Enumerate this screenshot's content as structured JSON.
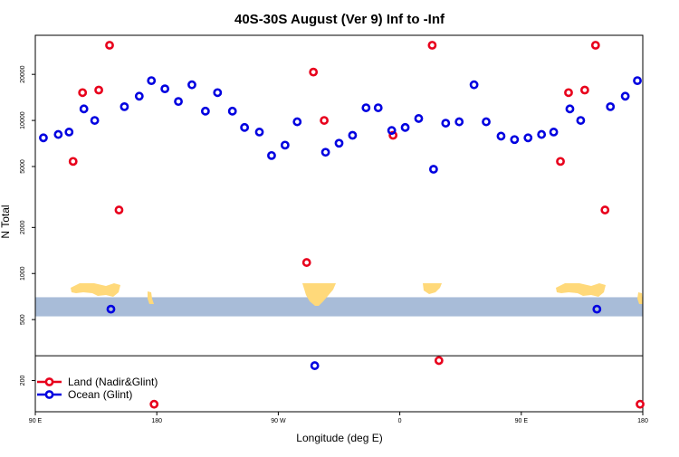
{
  "chart_data": {
    "type": "scatter",
    "title": "40S-30S August (Ver 9)   Inf to -Inf",
    "xlabel": "Longitude (deg E)",
    "ylabel": "N Total",
    "y_scale": "log",
    "ylim": [
      125,
      36000
    ],
    "x_ticks": [
      {
        "x": 0,
        "label": "90 E"
      },
      {
        "x": 90,
        "label": "180"
      },
      {
        "x": 180,
        "label": "90 W"
      },
      {
        "x": 270,
        "label": "0"
      },
      {
        "x": 360,
        "label": "90 E"
      },
      {
        "x": 450,
        "label": "180"
      }
    ],
    "y_ticks": [
      {
        "y": 200,
        "label": "200"
      },
      {
        "y": 500,
        "label": "500"
      },
      {
        "y": 1000,
        "label": "1000"
      },
      {
        "y": 2000,
        "label": "2000"
      },
      {
        "y": 5000,
        "label": "5000"
      },
      {
        "y": 10000,
        "label": "10000"
      },
      {
        "y": 20000,
        "label": "20000"
      }
    ],
    "reference_line_y": 290,
    "map_band": {
      "y_low": 525,
      "y_high": 700,
      "ocean_color": "#a8bcd8",
      "land_color": "#ffd97a"
    },
    "legend_position": "bottom-left",
    "series": [
      {
        "name": "Land (Nadir&Glint)",
        "color": "#e8001c",
        "points": [
          {
            "x": 28,
            "y": 5400
          },
          {
            "x": 35,
            "y": 15200
          },
          {
            "x": 47,
            "y": 15800
          },
          {
            "x": 55,
            "y": 31000
          },
          {
            "x": 62,
            "y": 2600
          },
          {
            "x": 201,
            "y": 1180
          },
          {
            "x": 206,
            "y": 20700
          },
          {
            "x": 214,
            "y": 10000
          },
          {
            "x": 265,
            "y": 8000
          },
          {
            "x": 294,
            "y": 31000
          },
          {
            "x": 299,
            "y": 270
          },
          {
            "x": 389,
            "y": 5400
          },
          {
            "x": 395,
            "y": 15200
          },
          {
            "x": 407,
            "y": 15800
          },
          {
            "x": 415,
            "y": 31000
          },
          {
            "x": 422,
            "y": 2600
          },
          {
            "x": 88,
            "y": 140
          },
          {
            "x": 448,
            "y": 140
          }
        ]
      },
      {
        "name": "Ocean (Glint)",
        "color": "#0000e0",
        "points": [
          {
            "x": 6,
            "y": 7700
          },
          {
            "x": 17,
            "y": 8100
          },
          {
            "x": 25,
            "y": 8400
          },
          {
            "x": 36,
            "y": 11900
          },
          {
            "x": 44,
            "y": 10000
          },
          {
            "x": 56,
            "y": 585
          },
          {
            "x": 66,
            "y": 12300
          },
          {
            "x": 77,
            "y": 14400
          },
          {
            "x": 86,
            "y": 18200
          },
          {
            "x": 96,
            "y": 16100
          },
          {
            "x": 106,
            "y": 13300
          },
          {
            "x": 116,
            "y": 17100
          },
          {
            "x": 126,
            "y": 11500
          },
          {
            "x": 135,
            "y": 15200
          },
          {
            "x": 146,
            "y": 11500
          },
          {
            "x": 155,
            "y": 9000
          },
          {
            "x": 166,
            "y": 8400
          },
          {
            "x": 175,
            "y": 5900
          },
          {
            "x": 185,
            "y": 6900
          },
          {
            "x": 194,
            "y": 9800
          },
          {
            "x": 207,
            "y": 250
          },
          {
            "x": 215,
            "y": 6200
          },
          {
            "x": 225,
            "y": 7100
          },
          {
            "x": 235,
            "y": 8000
          },
          {
            "x": 245,
            "y": 12100
          },
          {
            "x": 254,
            "y": 12100
          },
          {
            "x": 264,
            "y": 8600
          },
          {
            "x": 274,
            "y": 9000
          },
          {
            "x": 284,
            "y": 10300
          },
          {
            "x": 295,
            "y": 4800
          },
          {
            "x": 304,
            "y": 9600
          },
          {
            "x": 314,
            "y": 9800
          },
          {
            "x": 325,
            "y": 17100
          },
          {
            "x": 334,
            "y": 9800
          },
          {
            "x": 345,
            "y": 7900
          },
          {
            "x": 355,
            "y": 7500
          },
          {
            "x": 365,
            "y": 7700
          },
          {
            "x": 375,
            "y": 8100
          },
          {
            "x": 384,
            "y": 8400
          },
          {
            "x": 396,
            "y": 11900
          },
          {
            "x": 404,
            "y": 10000
          },
          {
            "x": 416,
            "y": 585
          },
          {
            "x": 426,
            "y": 12300
          },
          {
            "x": 437,
            "y": 14400
          },
          {
            "x": 446,
            "y": 18200
          }
        ]
      }
    ]
  }
}
